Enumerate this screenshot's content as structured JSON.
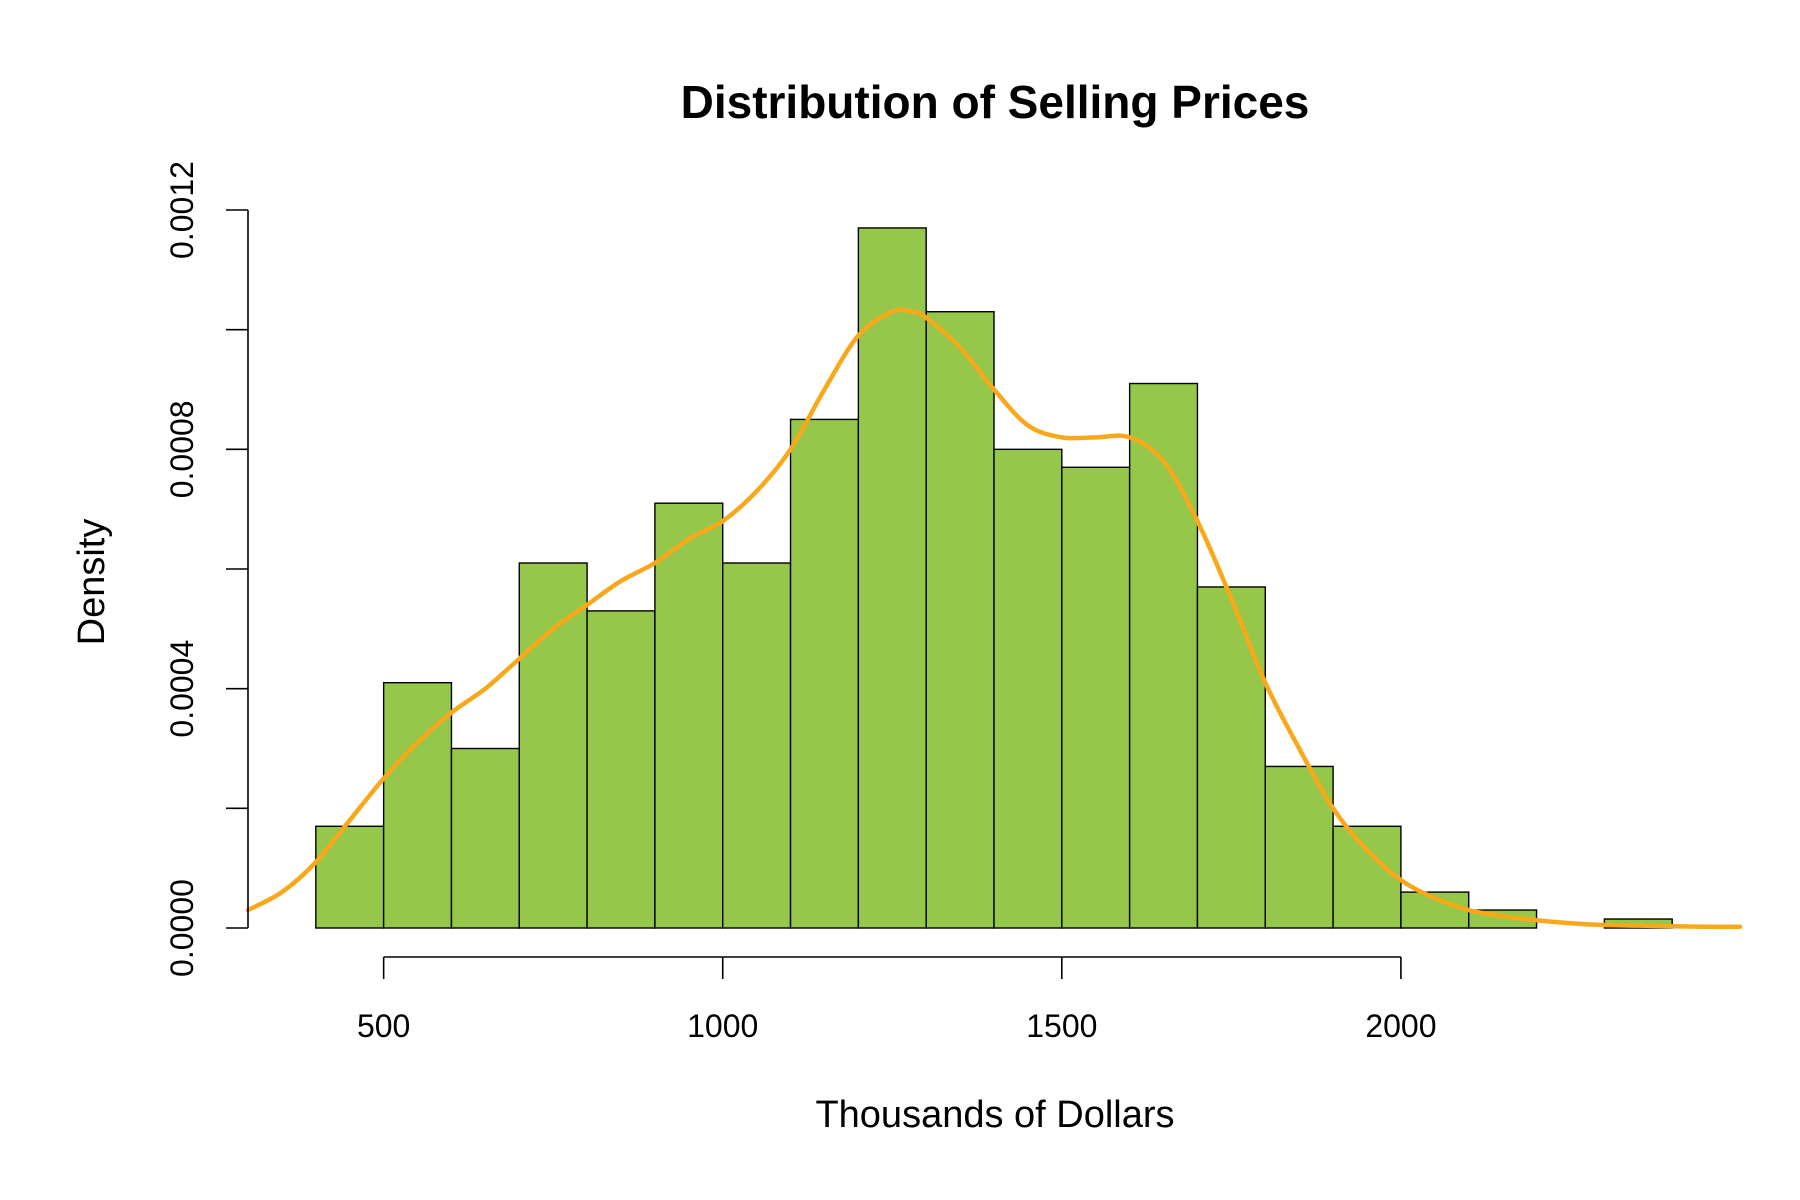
{
  "chart_data": {
    "type": "histogram",
    "title": "Distribution of Selling Prices",
    "xlabel": "Thousands of Dollars",
    "ylabel": "Density",
    "bar_color": "#94C74A",
    "curve_color": "#F9A81B",
    "xlim": [
      300,
      2500
    ],
    "ylim": [
      0,
      0.0012
    ],
    "x_ticks": [
      500,
      1000,
      1500,
      2000
    ],
    "x_tick_labels": [
      "500",
      "1000",
      "1500",
      "2000"
    ],
    "y_ticks": [
      0,
      0.0002,
      0.0004,
      0.0006,
      0.0008,
      0.001,
      0.0012
    ],
    "y_tick_labels": [
      "0.0000",
      "",
      "0.0004",
      "",
      "0.0008",
      "",
      "0.0012"
    ],
    "bins": [
      {
        "start": 400,
        "end": 500,
        "density": 0.00017
      },
      {
        "start": 500,
        "end": 600,
        "density": 0.00041
      },
      {
        "start": 600,
        "end": 700,
        "density": 0.0003
      },
      {
        "start": 700,
        "end": 800,
        "density": 0.00061
      },
      {
        "start": 800,
        "end": 900,
        "density": 0.00053
      },
      {
        "start": 900,
        "end": 1000,
        "density": 0.00071
      },
      {
        "start": 1000,
        "end": 1100,
        "density": 0.00061
      },
      {
        "start": 1100,
        "end": 1200,
        "density": 0.00085
      },
      {
        "start": 1200,
        "end": 1300,
        "density": 0.00117
      },
      {
        "start": 1300,
        "end": 1400,
        "density": 0.00103
      },
      {
        "start": 1400,
        "end": 1500,
        "density": 0.0008
      },
      {
        "start": 1500,
        "end": 1600,
        "density": 0.00077
      },
      {
        "start": 1600,
        "end": 1700,
        "density": 0.00091
      },
      {
        "start": 1700,
        "end": 1800,
        "density": 0.00057
      },
      {
        "start": 1800,
        "end": 1900,
        "density": 0.00027
      },
      {
        "start": 1900,
        "end": 2000,
        "density": 0.00017
      },
      {
        "start": 2000,
        "end": 2100,
        "density": 6e-05
      },
      {
        "start": 2100,
        "end": 2200,
        "density": 3e-05
      },
      {
        "start": 2200,
        "end": 2300,
        "density": 0
      },
      {
        "start": 2300,
        "end": 2400,
        "density": 1.5e-05
      }
    ],
    "density_curve": {
      "x": [
        300,
        350,
        400,
        450,
        500,
        550,
        600,
        650,
        700,
        750,
        800,
        850,
        900,
        950,
        1000,
        1050,
        1100,
        1150,
        1200,
        1250,
        1280,
        1300,
        1350,
        1400,
        1450,
        1500,
        1550,
        1600,
        1650,
        1700,
        1750,
        1800,
        1850,
        1900,
        1950,
        2000,
        2050,
        2100,
        2150,
        2200,
        2250,
        2300,
        2350,
        2400,
        2450,
        2500
      ],
      "y": [
        3e-05,
        6e-05,
        0.00011,
        0.00018,
        0.00025,
        0.00031,
        0.00036,
        0.0004,
        0.00045,
        0.0005,
        0.00054,
        0.00058,
        0.00061,
        0.00065,
        0.00068,
        0.00073,
        0.0008,
        0.0009,
        0.00099,
        0.00103,
        0.00103,
        0.00102,
        0.00097,
        0.0009,
        0.00084,
        0.00082,
        0.00082,
        0.00082,
        0.00078,
        0.00068,
        0.00055,
        0.00041,
        0.0003,
        0.0002,
        0.00013,
        8e-05,
        5e-05,
        3e-05,
        2e-05,
        1.3e-05,
        8e-06,
        5e-06,
        4e-06,
        3e-06,
        2e-06,
        2e-06
      ]
    }
  }
}
